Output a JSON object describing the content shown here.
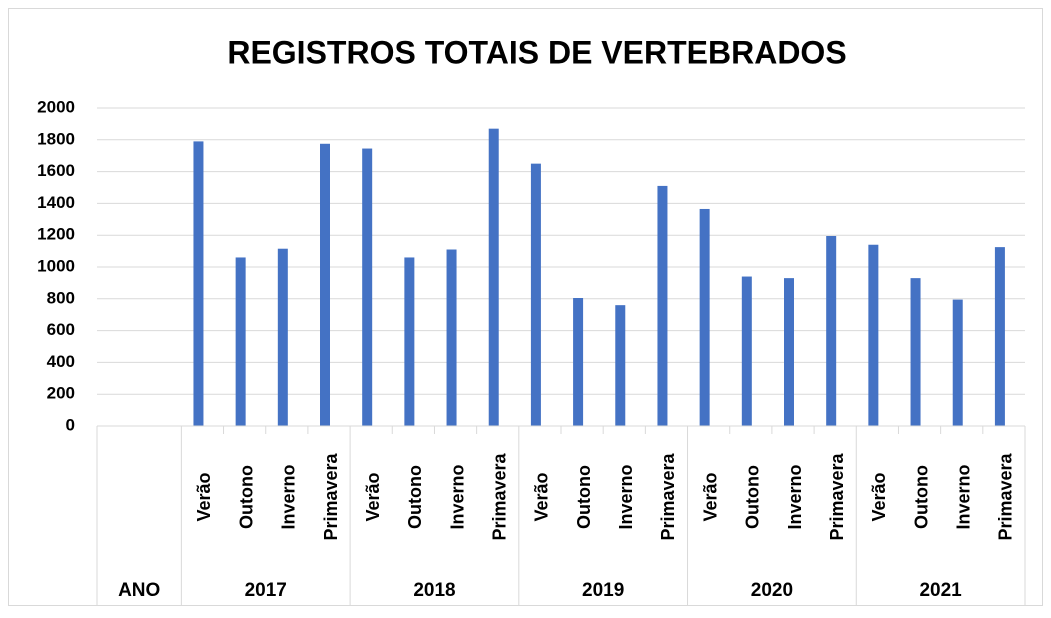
{
  "chart_data": {
    "type": "bar",
    "title": "REGISTROS TOTAIS DE VERTEBRADOS",
    "color": "#4472c4",
    "groups": [
      {
        "label": "ANO",
        "categories": [
          null,
          null
        ],
        "values": [
          null,
          null
        ]
      },
      {
        "label": "2017",
        "categories": [
          "Verão",
          "Outono",
          "Inverno",
          "Primavera"
        ],
        "values": [
          1790,
          1060,
          1115,
          1775
        ]
      },
      {
        "label": "2018",
        "categories": [
          "Verão",
          "Outono",
          "Inverno",
          "Primavera"
        ],
        "values": [
          1745,
          1060,
          1110,
          1870
        ]
      },
      {
        "label": "2019",
        "categories": [
          "Verão",
          "Outono",
          "Inverno",
          "Primavera"
        ],
        "values": [
          1650,
          805,
          760,
          1510
        ]
      },
      {
        "label": "2020",
        "categories": [
          "Verão",
          "Outono",
          "Inverno",
          "Primavera"
        ],
        "values": [
          1365,
          940,
          930,
          1195
        ]
      },
      {
        "label": "2021",
        "categories": [
          "Verão",
          "Outono",
          "Inverno",
          "Primavera"
        ],
        "values": [
          1140,
          930,
          795,
          1125
        ]
      }
    ],
    "ylim": [
      0,
      2000
    ],
    "yticks": [
      0,
      200,
      400,
      600,
      800,
      1000,
      1200,
      1400,
      1600,
      1800,
      2000
    ],
    "grid": true
  }
}
